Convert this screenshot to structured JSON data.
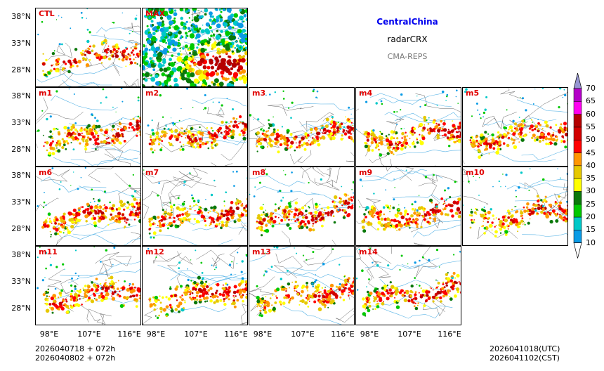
{
  "header": {
    "region": "CentralChina",
    "variable": "radarCRX",
    "model": "CMA-REPS"
  },
  "panels": [
    "CTL",
    "MAX",
    "m1",
    "m2",
    "m3",
    "m4",
    "m5",
    "m6",
    "m7",
    "m8",
    "m9",
    "m10",
    "m11",
    "m12",
    "m13",
    "m14"
  ],
  "lat_labels": [
    "38°N",
    "33°N",
    "28°N"
  ],
  "lon_labels": [
    "98°E",
    "107°E",
    "116°E"
  ],
  "footer": {
    "init_utc": "2026040718  +  072h",
    "init_cst": "2026040802  +  072h",
    "valid_utc": "2026041018(UTC)",
    "valid_cst": "2026041102(CST)"
  },
  "colorbar": {
    "levels": [
      "10",
      "15",
      "20",
      "25",
      "30",
      "35",
      "40",
      "45",
      "50",
      "55",
      "60",
      "65",
      "70"
    ],
    "colors": [
      "#0a9be6",
      "#00c8c8",
      "#00c800",
      "#0a780a",
      "#ffff00",
      "#e6c800",
      "#ff9600",
      "#ff0000",
      "#d20000",
      "#b40000",
      "#ff00f0",
      "#b400c8",
      "#9696d2"
    ],
    "under_color": "#ffffff"
  },
  "colors": {
    "title_blue": "#0000ee",
    "panel_label_red": "#e00000"
  }
}
